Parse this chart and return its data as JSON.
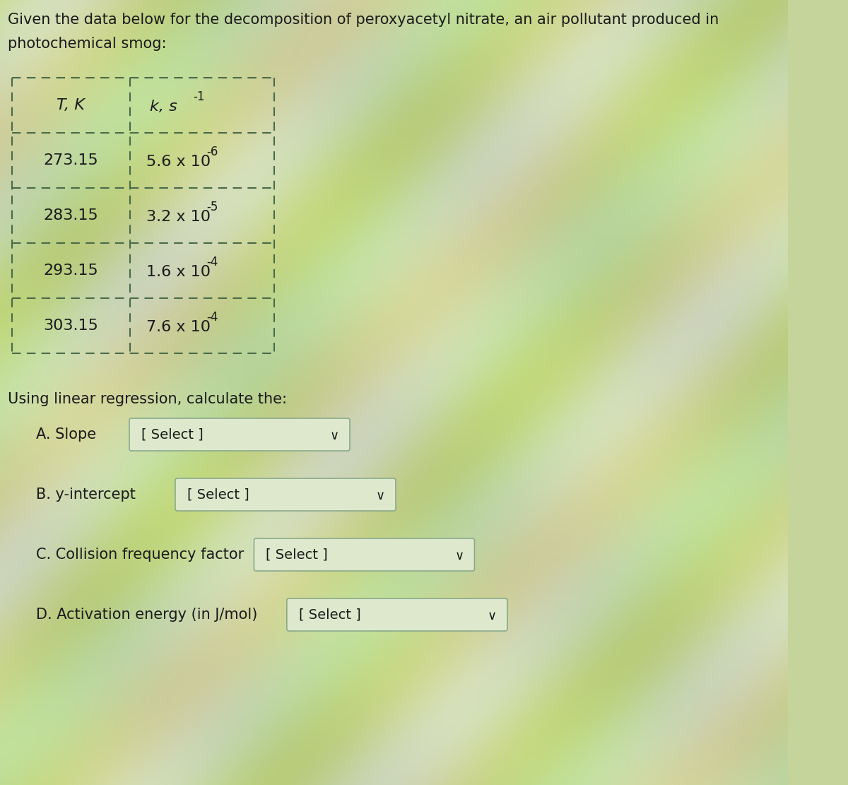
{
  "title_line1": "Given the data below for the decomposition of peroxyacetyl nitrate, an air pollutant produced in",
  "title_line2": "photochemical smog:",
  "col1_header": "T, K",
  "col2_header_main": "k, s",
  "col2_header_sup": "-1",
  "t_vals": [
    "273.15",
    "283.15",
    "293.15",
    "303.15"
  ],
  "k_mains": [
    "5.6 x 10",
    "3.2 x 10",
    "1.6 x 10",
    "7.6 x 10"
  ],
  "k_sups": [
    "-6",
    "-5",
    "-4",
    "-4"
  ],
  "regression_label": "Using linear regression, calculate the:",
  "q_labels": [
    "A. Slope",
    "B. y-intercept",
    "C. Collision frequency factor",
    "D. Activation energy (in J/mol)"
  ],
  "select_text": "[ Select ]",
  "bg_color": "#c5d49a",
  "table_border_color": "#4a6a4a",
  "text_color": "#1a1a1a",
  "select_box_color": "#dde8cc",
  "select_border_color": "#8aaa8a",
  "title_fontsize": 15,
  "table_fontsize": 15,
  "question_fontsize": 15
}
